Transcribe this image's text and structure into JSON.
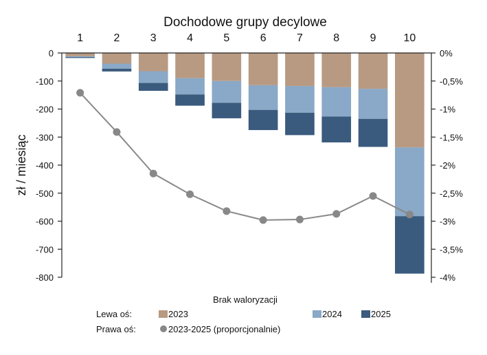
{
  "colors": {
    "bar_2023": "#b89a82",
    "bar_2024": "#8aa8c7",
    "bar_2025": "#3a5b7e",
    "line": "#888888",
    "axis": "#222222"
  },
  "chart_data": {
    "type": "bar",
    "title": "Dochodowe grupy decylowe",
    "xlabel": "Brak waloryzacji",
    "ylabel": "zł / miesiąc",
    "categories": [
      "1",
      "2",
      "3",
      "4",
      "5",
      "6",
      "7",
      "8",
      "9",
      "10"
    ],
    "stacked": true,
    "series": [
      {
        "name": "2023",
        "axis": "left",
        "values": [
          -12,
          -38,
          -65,
          -90,
          -100,
          -115,
          -118,
          -122,
          -128,
          -337
        ]
      },
      {
        "name": "2024",
        "axis": "left",
        "values": [
          -3,
          -18,
          -42,
          -58,
          -78,
          -88,
          -95,
          -105,
          -107,
          -245
        ]
      },
      {
        "name": "2025",
        "axis": "left",
        "values": [
          -3,
          -10,
          -28,
          -40,
          -55,
          -72,
          -80,
          -92,
          -100,
          -205
        ]
      },
      {
        "name": "2023-2025 (proporcjonalnie)",
        "axis": "right",
        "type": "line",
        "values": [
          -0.71,
          -1.41,
          -2.15,
          -2.52,
          -2.82,
          -2.98,
          -2.97,
          -2.87,
          -2.55,
          -2.88
        ]
      }
    ],
    "ylim_left": [
      -800,
      0
    ],
    "yticks_left": [
      0,
      -100,
      -200,
      -300,
      -400,
      -500,
      -600,
      -700,
      -800
    ],
    "ylim_right": [
      -4,
      0
    ],
    "yticks_right": [
      {
        "value": 0,
        "label": "0%"
      },
      {
        "value": -0.5,
        "label": "-0,5%"
      },
      {
        "value": -1,
        "label": "-1%"
      },
      {
        "value": -1.5,
        "label": "-1,5%"
      },
      {
        "value": -2,
        "label": "-2%"
      },
      {
        "value": -2.5,
        "label": "-2,5%"
      },
      {
        "value": -3,
        "label": "-3%"
      },
      {
        "value": -3.5,
        "label": "-3,5%"
      },
      {
        "value": -4,
        "label": "-4%"
      }
    ],
    "legend": {
      "title": "Brak waloryzacji",
      "left_axis_label": "Lewa oś:",
      "right_axis_label": "Prawa oś:",
      "entries_left": [
        "2023",
        "2024",
        "2025"
      ],
      "entries_right": [
        "2023-2025 (proporcjonalnie)"
      ],
      "placement": "bottom"
    },
    "grid": false
  }
}
